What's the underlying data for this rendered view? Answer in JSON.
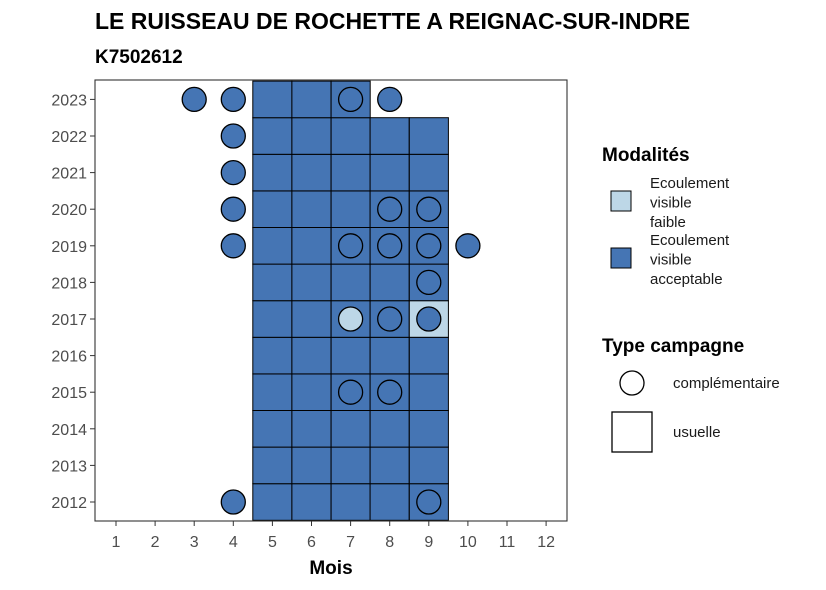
{
  "chart_data": {
    "type": "heatmap",
    "title": "LE RUISSEAU DE ROCHETTE A REIGNAC-SUR-INDRE",
    "subtitle": "K7502612",
    "xlabel": "Mois",
    "ylabel": "",
    "x_ticks": [
      "1",
      "2",
      "3",
      "4",
      "5",
      "6",
      "7",
      "8",
      "9",
      "10",
      "11",
      "12"
    ],
    "y_ticks": [
      "2012",
      "2013",
      "2014",
      "2015",
      "2016",
      "2017",
      "2018",
      "2019",
      "2020",
      "2021",
      "2022",
      "2023"
    ],
    "grid": false,
    "legend_position": "right",
    "fill_legend": {
      "title": "Modalités",
      "items": [
        {
          "key": "faible",
          "lines": [
            "Ecoulement",
            "visible",
            "faible"
          ],
          "color": "#bdd7e7"
        },
        {
          "key": "acceptable",
          "lines": [
            "Ecoulement",
            "visible",
            "acceptable"
          ],
          "color": "#4575b4"
        }
      ]
    },
    "shape_legend": {
      "title": "Type campagne",
      "items": [
        {
          "key": "complementaire",
          "label": "complémentaire",
          "shape": "circle"
        },
        {
          "key": "usuelle",
          "label": "usuelle",
          "shape": "square"
        }
      ]
    },
    "cells": [
      {
        "year": 2012,
        "month": 4,
        "type": "complementaire",
        "modalite": "acceptable"
      },
      {
        "year": 2012,
        "month": 5,
        "type": "usuelle",
        "modalite": "acceptable"
      },
      {
        "year": 2012,
        "month": 6,
        "type": "usuelle",
        "modalite": "acceptable"
      },
      {
        "year": 2012,
        "month": 7,
        "type": "usuelle",
        "modalite": "acceptable"
      },
      {
        "year": 2012,
        "month": 8,
        "type": "usuelle",
        "modalite": "acceptable"
      },
      {
        "year": 2012,
        "month": 9,
        "type": "usuelle",
        "modalite": "acceptable"
      },
      {
        "year": 2012,
        "month": 9,
        "type": "complementaire",
        "modalite": "acceptable"
      },
      {
        "year": 2013,
        "month": 5,
        "type": "usuelle",
        "modalite": "acceptable"
      },
      {
        "year": 2013,
        "month": 6,
        "type": "usuelle",
        "modalite": "acceptable"
      },
      {
        "year": 2013,
        "month": 7,
        "type": "usuelle",
        "modalite": "acceptable"
      },
      {
        "year": 2013,
        "month": 8,
        "type": "usuelle",
        "modalite": "acceptable"
      },
      {
        "year": 2013,
        "month": 9,
        "type": "usuelle",
        "modalite": "acceptable"
      },
      {
        "year": 2014,
        "month": 5,
        "type": "usuelle",
        "modalite": "acceptable"
      },
      {
        "year": 2014,
        "month": 6,
        "type": "usuelle",
        "modalite": "acceptable"
      },
      {
        "year": 2014,
        "month": 7,
        "type": "usuelle",
        "modalite": "acceptable"
      },
      {
        "year": 2014,
        "month": 8,
        "type": "usuelle",
        "modalite": "acceptable"
      },
      {
        "year": 2014,
        "month": 9,
        "type": "usuelle",
        "modalite": "acceptable"
      },
      {
        "year": 2015,
        "month": 5,
        "type": "usuelle",
        "modalite": "acceptable"
      },
      {
        "year": 2015,
        "month": 6,
        "type": "usuelle",
        "modalite": "acceptable"
      },
      {
        "year": 2015,
        "month": 7,
        "type": "usuelle",
        "modalite": "acceptable"
      },
      {
        "year": 2015,
        "month": 8,
        "type": "usuelle",
        "modalite": "acceptable"
      },
      {
        "year": 2015,
        "month": 9,
        "type": "usuelle",
        "modalite": "acceptable"
      },
      {
        "year": 2015,
        "month": 7,
        "type": "complementaire",
        "modalite": "acceptable"
      },
      {
        "year": 2015,
        "month": 8,
        "type": "complementaire",
        "modalite": "acceptable"
      },
      {
        "year": 2016,
        "month": 5,
        "type": "usuelle",
        "modalite": "acceptable"
      },
      {
        "year": 2016,
        "month": 6,
        "type": "usuelle",
        "modalite": "acceptable"
      },
      {
        "year": 2016,
        "month": 7,
        "type": "usuelle",
        "modalite": "acceptable"
      },
      {
        "year": 2016,
        "month": 8,
        "type": "usuelle",
        "modalite": "acceptable"
      },
      {
        "year": 2016,
        "month": 9,
        "type": "usuelle",
        "modalite": "acceptable"
      },
      {
        "year": 2017,
        "month": 5,
        "type": "usuelle",
        "modalite": "acceptable"
      },
      {
        "year": 2017,
        "month": 6,
        "type": "usuelle",
        "modalite": "acceptable"
      },
      {
        "year": 2017,
        "month": 7,
        "type": "usuelle",
        "modalite": "acceptable"
      },
      {
        "year": 2017,
        "month": 8,
        "type": "usuelle",
        "modalite": "acceptable"
      },
      {
        "year": 2017,
        "month": 9,
        "type": "usuelle",
        "modalite": "faible"
      },
      {
        "year": 2017,
        "month": 7,
        "type": "complementaire",
        "modalite": "faible"
      },
      {
        "year": 2017,
        "month": 8,
        "type": "complementaire",
        "modalite": "acceptable"
      },
      {
        "year": 2017,
        "month": 9,
        "type": "complementaire",
        "modalite": "acceptable"
      },
      {
        "year": 2018,
        "month": 5,
        "type": "usuelle",
        "modalite": "acceptable"
      },
      {
        "year": 2018,
        "month": 6,
        "type": "usuelle",
        "modalite": "acceptable"
      },
      {
        "year": 2018,
        "month": 7,
        "type": "usuelle",
        "modalite": "acceptable"
      },
      {
        "year": 2018,
        "month": 8,
        "type": "usuelle",
        "modalite": "acceptable"
      },
      {
        "year": 2018,
        "month": 9,
        "type": "usuelle",
        "modalite": "acceptable"
      },
      {
        "year": 2018,
        "month": 9,
        "type": "complementaire",
        "modalite": "acceptable"
      },
      {
        "year": 2019,
        "month": 4,
        "type": "complementaire",
        "modalite": "acceptable"
      },
      {
        "year": 2019,
        "month": 5,
        "type": "usuelle",
        "modalite": "acceptable"
      },
      {
        "year": 2019,
        "month": 6,
        "type": "usuelle",
        "modalite": "acceptable"
      },
      {
        "year": 2019,
        "month": 7,
        "type": "usuelle",
        "modalite": "acceptable"
      },
      {
        "year": 2019,
        "month": 8,
        "type": "usuelle",
        "modalite": "acceptable"
      },
      {
        "year": 2019,
        "month": 9,
        "type": "usuelle",
        "modalite": "acceptable"
      },
      {
        "year": 2019,
        "month": 7,
        "type": "complementaire",
        "modalite": "acceptable"
      },
      {
        "year": 2019,
        "month": 8,
        "type": "complementaire",
        "modalite": "acceptable"
      },
      {
        "year": 2019,
        "month": 9,
        "type": "complementaire",
        "modalite": "acceptable"
      },
      {
        "year": 2019,
        "month": 10,
        "type": "complementaire",
        "modalite": "acceptable"
      },
      {
        "year": 2020,
        "month": 4,
        "type": "complementaire",
        "modalite": "acceptable"
      },
      {
        "year": 2020,
        "month": 5,
        "type": "usuelle",
        "modalite": "acceptable"
      },
      {
        "year": 2020,
        "month": 6,
        "type": "usuelle",
        "modalite": "acceptable"
      },
      {
        "year": 2020,
        "month": 7,
        "type": "usuelle",
        "modalite": "acceptable"
      },
      {
        "year": 2020,
        "month": 8,
        "type": "usuelle",
        "modalite": "acceptable"
      },
      {
        "year": 2020,
        "month": 9,
        "type": "usuelle",
        "modalite": "acceptable"
      },
      {
        "year": 2020,
        "month": 8,
        "type": "complementaire",
        "modalite": "acceptable"
      },
      {
        "year": 2020,
        "month": 9,
        "type": "complementaire",
        "modalite": "acceptable"
      },
      {
        "year": 2021,
        "month": 4,
        "type": "complementaire",
        "modalite": "acceptable"
      },
      {
        "year": 2021,
        "month": 5,
        "type": "usuelle",
        "modalite": "acceptable"
      },
      {
        "year": 2021,
        "month": 6,
        "type": "usuelle",
        "modalite": "acceptable"
      },
      {
        "year": 2021,
        "month": 7,
        "type": "usuelle",
        "modalite": "acceptable"
      },
      {
        "year": 2021,
        "month": 8,
        "type": "usuelle",
        "modalite": "acceptable"
      },
      {
        "year": 2021,
        "month": 9,
        "type": "usuelle",
        "modalite": "acceptable"
      },
      {
        "year": 2022,
        "month": 4,
        "type": "complementaire",
        "modalite": "acceptable"
      },
      {
        "year": 2022,
        "month": 5,
        "type": "usuelle",
        "modalite": "acceptable"
      },
      {
        "year": 2022,
        "month": 6,
        "type": "usuelle",
        "modalite": "acceptable"
      },
      {
        "year": 2022,
        "month": 7,
        "type": "usuelle",
        "modalite": "acceptable"
      },
      {
        "year": 2022,
        "month": 8,
        "type": "usuelle",
        "modalite": "acceptable"
      },
      {
        "year": 2022,
        "month": 9,
        "type": "usuelle",
        "modalite": "acceptable"
      },
      {
        "year": 2023,
        "month": 3,
        "type": "complementaire",
        "modalite": "acceptable"
      },
      {
        "year": 2023,
        "month": 4,
        "type": "complementaire",
        "modalite": "acceptable"
      },
      {
        "year": 2023,
        "month": 5,
        "type": "usuelle",
        "modalite": "acceptable"
      },
      {
        "year": 2023,
        "month": 6,
        "type": "usuelle",
        "modalite": "acceptable"
      },
      {
        "year": 2023,
        "month": 7,
        "type": "usuelle",
        "modalite": "acceptable"
      },
      {
        "year": 2023,
        "month": 7,
        "type": "complementaire",
        "modalite": "acceptable"
      },
      {
        "year": 2023,
        "month": 8,
        "type": "complementaire",
        "modalite": "acceptable"
      }
    ]
  }
}
